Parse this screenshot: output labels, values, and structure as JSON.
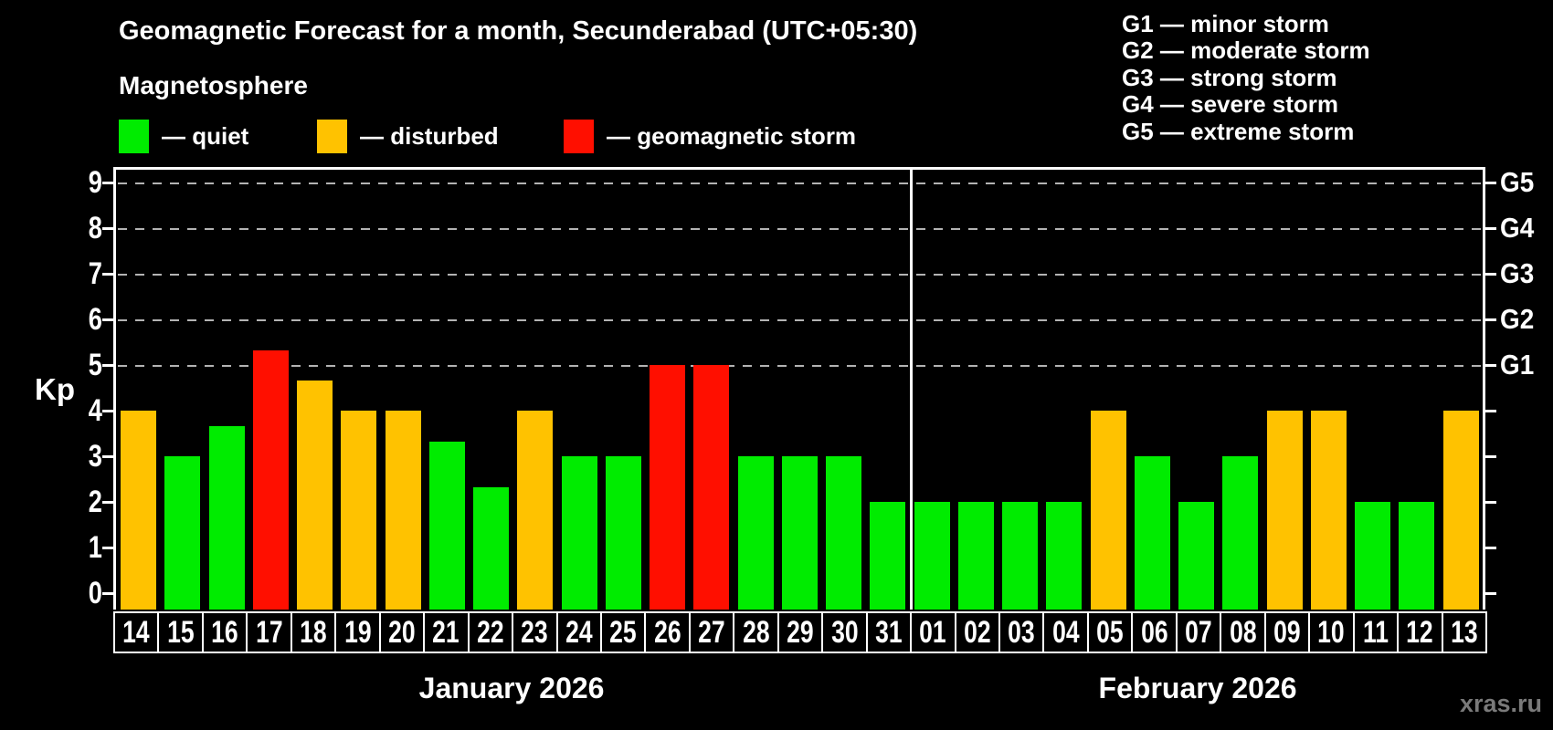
{
  "header": {
    "title": "Geomagnetic Forecast for a month, Secunderabad (UTC+05:30)",
    "subtitle": "Magnetosphere"
  },
  "status_legend": [
    {
      "key": "quiet",
      "label": "— quiet"
    },
    {
      "key": "disturbed",
      "label": "— disturbed"
    },
    {
      "key": "storm",
      "label": "— geomagnetic storm"
    }
  ],
  "g_legend": [
    "G1 — minor storm",
    "G2 — moderate storm",
    "G3 — strong storm",
    "G4 — severe storm",
    "G5 — extreme storm"
  ],
  "watermark": "xras.ru",
  "colors": {
    "background": "#000000",
    "quiet": "#00ec00",
    "disturbed": "#ffc200",
    "storm": "#ff0f00",
    "axis": "#ffffff",
    "grid": "#b3b3b3",
    "watermark": "#7a7a7a"
  },
  "chart_data": {
    "type": "bar",
    "ylabel": "Kp",
    "ylim": [
      0,
      9
    ],
    "y_ticks": [
      0,
      1,
      2,
      3,
      4,
      5,
      6,
      7,
      8,
      9
    ],
    "gridlines_at_kp": [
      5,
      6,
      7,
      8,
      9
    ],
    "grid_style": "dashed",
    "right_axis_labels": [
      {
        "label": "G1",
        "kp": 5
      },
      {
        "label": "G2",
        "kp": 6
      },
      {
        "label": "G3",
        "kp": 7
      },
      {
        "label": "G4",
        "kp": 8
      },
      {
        "label": "G5",
        "kp": 9
      }
    ],
    "legend_position": "top",
    "months": [
      {
        "label": "January 2026",
        "days": [
          {
            "date": "14",
            "kp": 4.0,
            "status": "disturbed"
          },
          {
            "date": "15",
            "kp": 3.0,
            "status": "quiet"
          },
          {
            "date": "16",
            "kp": 3.67,
            "status": "quiet"
          },
          {
            "date": "17",
            "kp": 5.33,
            "status": "storm"
          },
          {
            "date": "18",
            "kp": 4.67,
            "status": "disturbed"
          },
          {
            "date": "19",
            "kp": 4.0,
            "status": "disturbed"
          },
          {
            "date": "20",
            "kp": 4.0,
            "status": "disturbed"
          },
          {
            "date": "21",
            "kp": 3.33,
            "status": "quiet"
          },
          {
            "date": "22",
            "kp": 2.33,
            "status": "quiet"
          },
          {
            "date": "23",
            "kp": 4.0,
            "status": "disturbed"
          },
          {
            "date": "24",
            "kp": 3.0,
            "status": "quiet"
          },
          {
            "date": "25",
            "kp": 3.0,
            "status": "quiet"
          },
          {
            "date": "26",
            "kp": 5.0,
            "status": "storm"
          },
          {
            "date": "27",
            "kp": 5.0,
            "status": "storm"
          },
          {
            "date": "28",
            "kp": 3.0,
            "status": "quiet"
          },
          {
            "date": "29",
            "kp": 3.0,
            "status": "quiet"
          },
          {
            "date": "30",
            "kp": 3.0,
            "status": "quiet"
          },
          {
            "date": "31",
            "kp": 2.0,
            "status": "quiet"
          }
        ]
      },
      {
        "label": "February 2026",
        "days": [
          {
            "date": "01",
            "kp": 2.0,
            "status": "quiet"
          },
          {
            "date": "02",
            "kp": 2.0,
            "status": "quiet"
          },
          {
            "date": "03",
            "kp": 2.0,
            "status": "quiet"
          },
          {
            "date": "04",
            "kp": 2.0,
            "status": "quiet"
          },
          {
            "date": "05",
            "kp": 4.0,
            "status": "disturbed"
          },
          {
            "date": "06",
            "kp": 3.0,
            "status": "quiet"
          },
          {
            "date": "07",
            "kp": 2.0,
            "status": "quiet"
          },
          {
            "date": "08",
            "kp": 3.0,
            "status": "quiet"
          },
          {
            "date": "09",
            "kp": 4.0,
            "status": "disturbed"
          },
          {
            "date": "10",
            "kp": 4.0,
            "status": "disturbed"
          },
          {
            "date": "11",
            "kp": 2.0,
            "status": "quiet"
          },
          {
            "date": "12",
            "kp": 2.0,
            "status": "quiet"
          },
          {
            "date": "13",
            "kp": 4.0,
            "status": "disturbed"
          }
        ]
      }
    ]
  }
}
